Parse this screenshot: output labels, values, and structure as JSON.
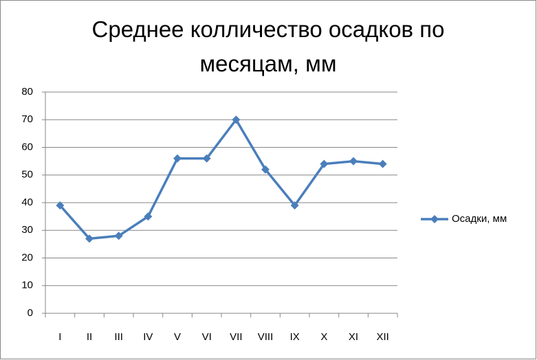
{
  "chart_data": {
    "type": "line",
    "title": "Среднее колличество осадков по месяцам, мм",
    "categories": [
      "I",
      "II",
      "III",
      "IV",
      "V",
      "VI",
      "VII",
      "VIII",
      "IX",
      "X",
      "XI",
      "XII"
    ],
    "series": [
      {
        "name": "Осадки, мм",
        "color": "#4a7ebb",
        "values": [
          39,
          27,
          28,
          35,
          56,
          56,
          70,
          52,
          39,
          54,
          55,
          54
        ]
      }
    ],
    "ylim": [
      0,
      80
    ],
    "yticks": [
      0,
      10,
      20,
      30,
      40,
      50,
      60,
      70,
      80
    ],
    "grid": true,
    "legend": "right"
  }
}
